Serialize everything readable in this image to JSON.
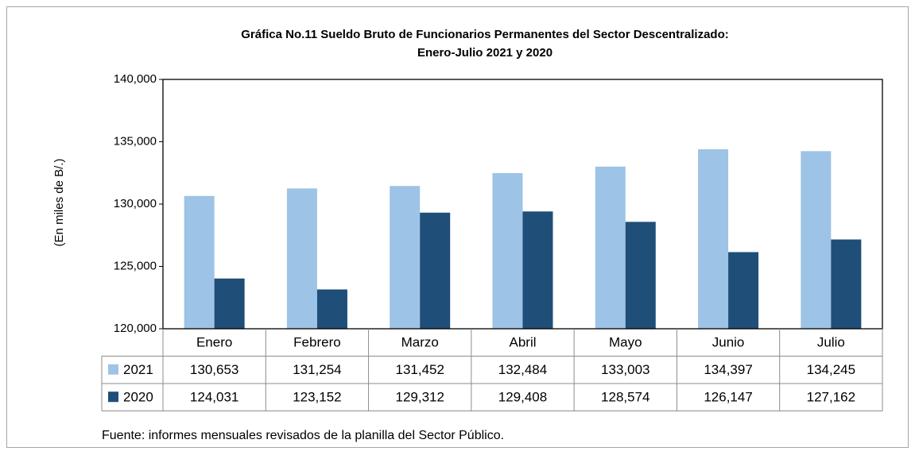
{
  "chart_data": {
    "type": "bar",
    "title": "Gráfica No.11 Sueldo Bruto de Funcionarios Permanentes del Sector Descentralizado:",
    "subtitle": "Enero-Julio 2021 y 2020",
    "y_label": "(En miles de B/.)",
    "categories": [
      "Enero",
      "Febrero",
      "Marzo",
      "Abril",
      "Mayo",
      "Junio",
      "Julio"
    ],
    "series": [
      {
        "name": "2021",
        "color": "#9dc3e6",
        "values": [
          130653,
          131254,
          131452,
          132484,
          133003,
          134397,
          134245
        ],
        "value_labels": [
          "130,653",
          "131,254",
          "131,452",
          "132,484",
          "133,003",
          "134,397",
          "134,245"
        ]
      },
      {
        "name": "2020",
        "color": "#1f4e79",
        "values": [
          124031,
          123152,
          129312,
          129408,
          128574,
          126147,
          127162
        ],
        "value_labels": [
          "124,031",
          "123,152",
          "129,312",
          "129,408",
          "128,574",
          "126,147",
          "127,162"
        ]
      }
    ],
    "ylim": [
      120000,
      140000
    ],
    "yticks": [
      {
        "value": 120000,
        "label": "120,000"
      },
      {
        "value": 125000,
        "label": "125,000"
      },
      {
        "value": 130000,
        "label": "130,000"
      },
      {
        "value": 135000,
        "label": "135,000"
      },
      {
        "value": 140000,
        "label": "140,000"
      }
    ],
    "grid": false,
    "source": "Fuente: informes mensuales revisados de la planilla del Sector Público."
  }
}
